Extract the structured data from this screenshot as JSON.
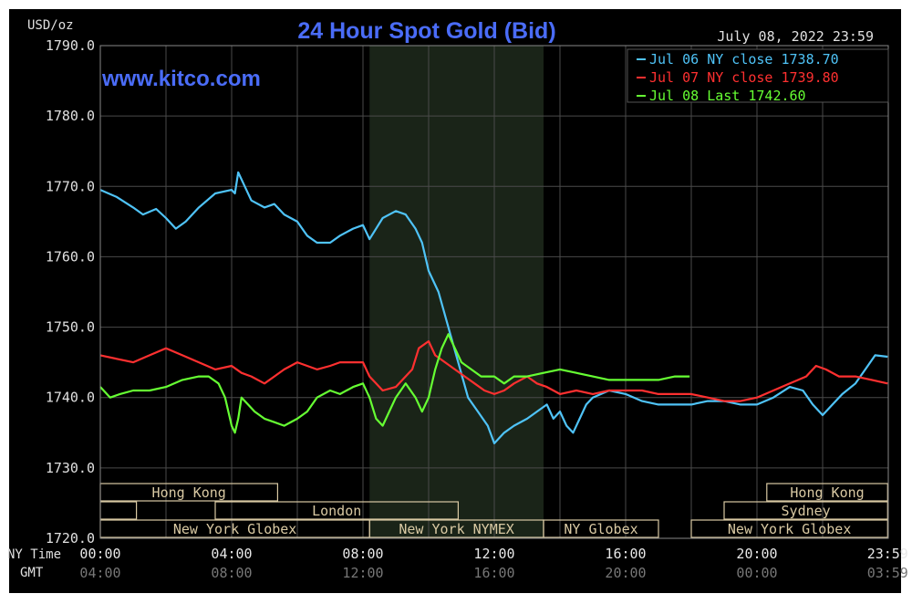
{
  "chart_data": {
    "type": "line",
    "title": "24 Hour Spot Gold (Bid)",
    "website": "www.kitco.com",
    "date_label": "July 08, 2022 23:59",
    "y_unit": "USD/oz",
    "ylim": [
      1720,
      1790
    ],
    "y_ticks": [
      "1790.0",
      "1780.0",
      "1770.0",
      "1760.0",
      "1750.0",
      "1740.0",
      "1730.0",
      "1720.0"
    ],
    "x_row_label": "NY Time",
    "x_ticks": [
      "00:00",
      "04:00",
      "08:00",
      "12:00",
      "16:00",
      "20:00",
      "23:59"
    ],
    "gmt_row_label": "GMT",
    "gmt_ticks": [
      "04:00",
      "08:00",
      "12:00",
      "16:00",
      "20:00",
      "00:00",
      "03:59"
    ],
    "grid": true,
    "legend_position": "top-right",
    "background_color": "#000000",
    "grid_color": "#4a4a4a",
    "highlight_color": "#1a2418",
    "session_color": "#d9c9a3",
    "series": [
      {
        "name": "Jul 06 NY close 1738.70",
        "color": "#4fc3f7",
        "points": [
          [
            0,
            1769.5
          ],
          [
            0.5,
            1768.5
          ],
          [
            1,
            1767
          ],
          [
            1.3,
            1766
          ],
          [
            1.7,
            1766.8
          ],
          [
            2,
            1765.5
          ],
          [
            2.3,
            1764
          ],
          [
            2.6,
            1765
          ],
          [
            3,
            1767
          ],
          [
            3.5,
            1769
          ],
          [
            4,
            1769.5
          ],
          [
            4.1,
            1769
          ],
          [
            4.2,
            1772
          ],
          [
            4.4,
            1770
          ],
          [
            4.6,
            1768
          ],
          [
            5,
            1767
          ],
          [
            5.3,
            1767.5
          ],
          [
            5.6,
            1766
          ],
          [
            6,
            1765
          ],
          [
            6.3,
            1763
          ],
          [
            6.6,
            1762
          ],
          [
            7,
            1762
          ],
          [
            7.3,
            1763
          ],
          [
            7.7,
            1764
          ],
          [
            8,
            1764.5
          ],
          [
            8.2,
            1762.5
          ],
          [
            8.4,
            1764
          ],
          [
            8.6,
            1765.5
          ],
          [
            9,
            1766.5
          ],
          [
            9.3,
            1766
          ],
          [
            9.6,
            1764
          ],
          [
            9.8,
            1762
          ],
          [
            10,
            1758
          ],
          [
            10.3,
            1755
          ],
          [
            10.6,
            1750
          ],
          [
            10.9,
            1745
          ],
          [
            11.2,
            1740
          ],
          [
            11.5,
            1738
          ],
          [
            11.8,
            1736
          ],
          [
            12,
            1733.5
          ],
          [
            12.3,
            1735
          ],
          [
            12.6,
            1736
          ],
          [
            13,
            1737
          ],
          [
            13.3,
            1738
          ],
          [
            13.6,
            1739
          ],
          [
            13.8,
            1737
          ],
          [
            14,
            1738
          ],
          [
            14.2,
            1736
          ],
          [
            14.4,
            1735
          ],
          [
            14.6,
            1737
          ],
          [
            14.8,
            1739
          ],
          [
            15,
            1740
          ],
          [
            15.5,
            1741
          ],
          [
            16,
            1740.5
          ],
          [
            16.5,
            1739.5
          ],
          [
            17,
            1739
          ],
          [
            17.5,
            1739
          ],
          [
            18,
            1739
          ],
          [
            18.5,
            1739.5
          ],
          [
            19,
            1739.5
          ],
          [
            19.5,
            1739
          ],
          [
            20,
            1739
          ],
          [
            20.5,
            1740
          ],
          [
            21,
            1741.5
          ],
          [
            21.4,
            1741
          ],
          [
            21.7,
            1739
          ],
          [
            22,
            1737.5
          ],
          [
            22.3,
            1739
          ],
          [
            22.6,
            1740.5
          ],
          [
            23,
            1742
          ],
          [
            23.3,
            1744
          ],
          [
            23.6,
            1746
          ],
          [
            23.98,
            1745.8
          ]
        ]
      },
      {
        "name": "Jul 07 NY close 1739.80",
        "color": "#ff3030",
        "points": [
          [
            0,
            1746
          ],
          [
            0.5,
            1745.5
          ],
          [
            1,
            1745
          ],
          [
            1.5,
            1746
          ],
          [
            2,
            1747
          ],
          [
            2.5,
            1746
          ],
          [
            3,
            1745
          ],
          [
            3.5,
            1744
          ],
          [
            4,
            1744.5
          ],
          [
            4.3,
            1743.5
          ],
          [
            4.6,
            1743
          ],
          [
            5,
            1742
          ],
          [
            5.3,
            1743
          ],
          [
            5.6,
            1744
          ],
          [
            6,
            1745
          ],
          [
            6.3,
            1744.5
          ],
          [
            6.6,
            1744
          ],
          [
            7,
            1744.5
          ],
          [
            7.3,
            1745
          ],
          [
            7.7,
            1745
          ],
          [
            8,
            1745
          ],
          [
            8.2,
            1743
          ],
          [
            8.4,
            1742
          ],
          [
            8.6,
            1741
          ],
          [
            9,
            1741.5
          ],
          [
            9.2,
            1742.5
          ],
          [
            9.5,
            1744
          ],
          [
            9.7,
            1747
          ],
          [
            10,
            1748
          ],
          [
            10.2,
            1746
          ],
          [
            10.5,
            1745
          ],
          [
            10.8,
            1744
          ],
          [
            11.1,
            1743
          ],
          [
            11.4,
            1742
          ],
          [
            11.7,
            1741
          ],
          [
            12,
            1740.5
          ],
          [
            12.3,
            1741
          ],
          [
            12.6,
            1742
          ],
          [
            13,
            1743
          ],
          [
            13.3,
            1742
          ],
          [
            13.6,
            1741.5
          ],
          [
            14,
            1740.5
          ],
          [
            14.5,
            1741
          ],
          [
            15,
            1740.5
          ],
          [
            15.5,
            1741
          ],
          [
            16,
            1741
          ],
          [
            16.5,
            1741
          ],
          [
            17,
            1740.5
          ],
          [
            17.5,
            1740.5
          ],
          [
            18,
            1740.5
          ],
          [
            18.5,
            1740
          ],
          [
            19,
            1739.5
          ],
          [
            19.5,
            1739.5
          ],
          [
            20,
            1740
          ],
          [
            20.5,
            1741
          ],
          [
            21,
            1742
          ],
          [
            21.5,
            1743
          ],
          [
            21.8,
            1744.5
          ],
          [
            22.1,
            1744
          ],
          [
            22.5,
            1743
          ],
          [
            23,
            1743
          ],
          [
            23.5,
            1742.5
          ],
          [
            23.98,
            1742
          ]
        ]
      },
      {
        "name": "Jul 08 Last 1742.60",
        "color": "#66ff33",
        "points": [
          [
            0,
            1741.5
          ],
          [
            0.3,
            1740
          ],
          [
            0.6,
            1740.5
          ],
          [
            1,
            1741
          ],
          [
            1.5,
            1741
          ],
          [
            2,
            1741.5
          ],
          [
            2.5,
            1742.5
          ],
          [
            3,
            1743
          ],
          [
            3.3,
            1743
          ],
          [
            3.6,
            1742
          ],
          [
            3.8,
            1740
          ],
          [
            3.9,
            1738
          ],
          [
            4,
            1736
          ],
          [
            4.1,
            1735
          ],
          [
            4.2,
            1737
          ],
          [
            4.3,
            1740
          ],
          [
            4.5,
            1739
          ],
          [
            4.7,
            1738
          ],
          [
            5,
            1737
          ],
          [
            5.3,
            1736.5
          ],
          [
            5.6,
            1736
          ],
          [
            6,
            1737
          ],
          [
            6.3,
            1738
          ],
          [
            6.6,
            1740
          ],
          [
            7,
            1741
          ],
          [
            7.3,
            1740.5
          ],
          [
            7.7,
            1741.5
          ],
          [
            8,
            1742
          ],
          [
            8.2,
            1740
          ],
          [
            8.4,
            1737
          ],
          [
            8.6,
            1736
          ],
          [
            8.8,
            1738
          ],
          [
            9,
            1740
          ],
          [
            9.3,
            1742
          ],
          [
            9.6,
            1740
          ],
          [
            9.8,
            1738
          ],
          [
            10,
            1740
          ],
          [
            10.2,
            1744
          ],
          [
            10.4,
            1747
          ],
          [
            10.6,
            1749
          ],
          [
            10.8,
            1747
          ],
          [
            11,
            1745
          ],
          [
            11.3,
            1744
          ],
          [
            11.6,
            1743
          ],
          [
            12,
            1743
          ],
          [
            12.3,
            1742
          ],
          [
            12.6,
            1743
          ],
          [
            13,
            1743
          ],
          [
            13.5,
            1743.5
          ],
          [
            14,
            1744
          ],
          [
            14.5,
            1743.5
          ],
          [
            15,
            1743
          ],
          [
            15.5,
            1742.5
          ],
          [
            16,
            1742.5
          ],
          [
            16.5,
            1742.5
          ],
          [
            17,
            1742.5
          ],
          [
            17.5,
            1743
          ],
          [
            17.95,
            1743
          ]
        ]
      }
    ],
    "sessions": [
      {
        "label": "Hong Kong",
        "row": 0,
        "start": 0,
        "end": 5.4
      },
      {
        "label": "",
        "row": 1,
        "start": 0,
        "end": 1.1
      },
      {
        "label": "London",
        "row": 1,
        "start": 3.5,
        "end": 10.9
      },
      {
        "label": "New York Globex",
        "row": 2,
        "start": 0,
        "end": 8.2
      },
      {
        "label": "New York NYMEX",
        "row": 2,
        "start": 8.2,
        "end": 13.5
      },
      {
        "label": "NY Globex",
        "row": 2,
        "start": 13.5,
        "end": 17.0
      },
      {
        "label": "Hong Kong",
        "row": 0,
        "start": 20.3,
        "end": 23.98
      },
      {
        "label": "Sydney",
        "row": 1,
        "start": 19.0,
        "end": 23.98
      },
      {
        "label": "New York Globex",
        "row": 2,
        "start": 18.0,
        "end": 23.98
      }
    ],
    "highlight_window": [
      8.2,
      13.5
    ]
  }
}
